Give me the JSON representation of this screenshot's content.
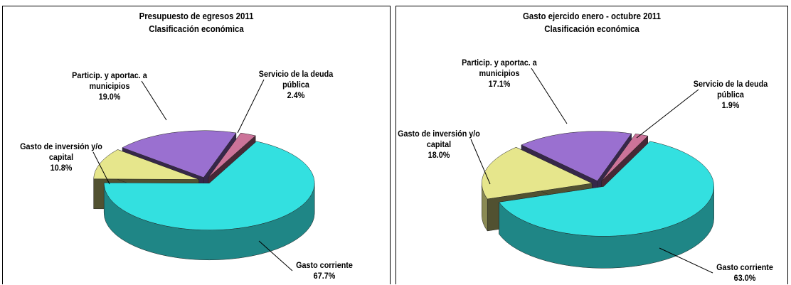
{
  "chart_data": [
    {
      "type": "pie3d",
      "title": "Presupuesto de egresos 2011",
      "subtitle": "Clasificación económica",
      "categories": [
        "Servicio de la deuda pública",
        "Gasto corriente",
        "Gasto de inversión y/o capital",
        "Particip. y aportac. a municipios"
      ],
      "values": [
        2.4,
        67.7,
        10.8,
        19.0
      ],
      "value_labels": [
        "2.4%",
        "67.7%",
        "10.8%",
        "19.0%"
      ],
      "colors": [
        "#cc7399",
        "#33e0e0",
        "#e6e68c",
        "#9a70d0"
      ]
    },
    {
      "type": "pie3d",
      "title": "Gasto ejercido enero - octubre 2011",
      "subtitle": "Clasificación económica",
      "categories": [
        "Servicio de la deuda pública",
        "Gasto corriente",
        "Gasto de inversión y/o capital",
        "Particip. y aportac. a municipios"
      ],
      "values": [
        1.9,
        63.0,
        18.0,
        17.1
      ],
      "value_labels": [
        "1.9%",
        "63.0%",
        "18.0%",
        "17.1%"
      ],
      "colors": [
        "#cc7399",
        "#33e0e0",
        "#e6e68c",
        "#9a70d0"
      ]
    }
  ]
}
